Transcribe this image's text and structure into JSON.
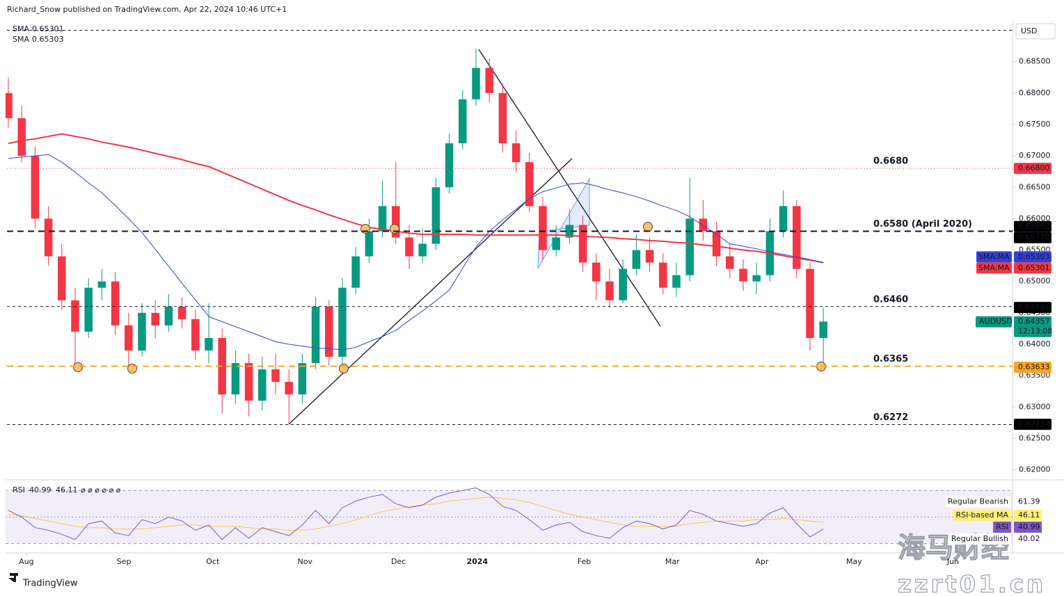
{
  "header": "Richard_Snow published on TradingView.com, Apr 22, 2024 10:46 UTC+1",
  "footer": "TradingView",
  "watermark": {
    "title": "海马财经",
    "url": "zzrt01.cn"
  },
  "chart_data": {
    "type": "candlestick",
    "symbol": "AUDUSD",
    "currency": "USD",
    "countdown": "12:13:08",
    "up_color": "#089981",
    "down_color": "#f23645",
    "xlim": [
      0,
      75
    ],
    "xticks": [
      {
        "value": 1.35,
        "label": "Aug"
      },
      {
        "value": 8.65,
        "label": "Sep"
      },
      {
        "value": 15.3,
        "label": "Oct"
      },
      {
        "value": 22.2,
        "label": "Nov"
      },
      {
        "value": 29.2,
        "label": "Dec"
      },
      {
        "value": 35.1,
        "label": "2024"
      },
      {
        "value": 43.1,
        "label": "Feb"
      },
      {
        "value": 49.7,
        "label": "Mar"
      },
      {
        "value": 56.4,
        "label": "Apr"
      },
      {
        "value": 63.3,
        "label": "May"
      },
      {
        "value": 70.7,
        "label": "Jun"
      }
    ],
    "ylim": [
      0.6184,
      0.6915
    ],
    "yticks": [
      {
        "value": 0.685,
        "label": "0.68500"
      },
      {
        "value": 0.68,
        "label": "0.68000"
      },
      {
        "value": 0.675,
        "label": "0.67500"
      },
      {
        "value": 0.67,
        "label": "0.67000"
      },
      {
        "value": 0.665,
        "label": "0.66500"
      },
      {
        "value": 0.66,
        "label": "0.66000"
      },
      {
        "value": 0.655,
        "label": "0.65500"
      },
      {
        "value": 0.65,
        "label": "0.65000"
      },
      {
        "value": 0.645,
        "label": "0.64500"
      },
      {
        "value": 0.64,
        "label": "0.64000"
      },
      {
        "value": 0.635,
        "label": "0.63500"
      },
      {
        "value": 0.63,
        "label": "0.63000"
      },
      {
        "value": 0.625,
        "label": "0.62500"
      },
      {
        "value": 0.62,
        "label": "0.62000"
      }
    ],
    "open": [
      0.68,
      0.676,
      0.67,
      0.66,
      0.654,
      0.647,
      0.642,
      0.649,
      0.65,
      0.643,
      0.639,
      0.645,
      0.643,
      0.646,
      0.644,
      0.639,
      0.641,
      0.632,
      0.637,
      0.631,
      0.636,
      0.634,
      0.632,
      0.637,
      0.646,
      0.638,
      0.649,
      0.654,
      0.658,
      0.662,
      0.657,
      0.654,
      0.656,
      0.665,
      0.672,
      0.679,
      0.684,
      0.68,
      0.672,
      0.669,
      0.662,
      0.655,
      0.657,
      0.659,
      0.653,
      0.65,
      0.647,
      0.652,
      0.655,
      0.653,
      0.649,
      0.651,
      0.66,
      0.658,
      0.654,
      0.652,
      0.65,
      0.651,
      0.658,
      0.662,
      0.652,
      0.641
    ],
    "high": [
      0.6825,
      0.678,
      0.6715,
      0.662,
      0.656,
      0.649,
      0.6505,
      0.652,
      0.6515,
      0.645,
      0.6465,
      0.647,
      0.648,
      0.6475,
      0.6455,
      0.6465,
      0.6425,
      0.639,
      0.6385,
      0.638,
      0.6385,
      0.636,
      0.6385,
      0.6475,
      0.647,
      0.6505,
      0.6555,
      0.66,
      0.666,
      0.669,
      0.659,
      0.6585,
      0.6665,
      0.6735,
      0.6805,
      0.6871,
      0.6855,
      0.6815,
      0.674,
      0.6705,
      0.6635,
      0.659,
      0.6615,
      0.6605,
      0.6545,
      0.652,
      0.6535,
      0.6575,
      0.657,
      0.6545,
      0.653,
      0.6665,
      0.663,
      0.6595,
      0.656,
      0.6535,
      0.653,
      0.66,
      0.6645,
      0.663,
      0.653,
      0.6458
    ],
    "low": [
      0.6745,
      0.669,
      0.6585,
      0.6525,
      0.6455,
      0.6365,
      0.641,
      0.647,
      0.6415,
      0.6363,
      0.638,
      0.641,
      0.642,
      0.6425,
      0.6375,
      0.637,
      0.629,
      0.6305,
      0.6285,
      0.6295,
      0.632,
      0.6272,
      0.6305,
      0.636,
      0.6365,
      0.636,
      0.648,
      0.653,
      0.657,
      0.656,
      0.652,
      0.653,
      0.655,
      0.664,
      0.671,
      0.678,
      0.6785,
      0.6705,
      0.6675,
      0.661,
      0.6535,
      0.654,
      0.656,
      0.6515,
      0.647,
      0.646,
      0.6465,
      0.651,
      0.6515,
      0.648,
      0.6475,
      0.65,
      0.6565,
      0.6525,
      0.6505,
      0.6485,
      0.648,
      0.65,
      0.657,
      0.6505,
      0.639,
      0.6362
    ],
    "close": [
      0.676,
      0.67,
      0.66,
      0.654,
      0.647,
      0.642,
      0.649,
      0.65,
      0.643,
      0.639,
      0.645,
      0.643,
      0.646,
      0.644,
      0.639,
      0.641,
      0.632,
      0.637,
      0.631,
      0.636,
      0.634,
      0.632,
      0.637,
      0.646,
      0.638,
      0.649,
      0.654,
      0.658,
      0.662,
      0.657,
      0.654,
      0.656,
      0.665,
      0.672,
      0.679,
      0.684,
      0.68,
      0.672,
      0.669,
      0.662,
      0.655,
      0.657,
      0.659,
      0.653,
      0.65,
      0.647,
      0.652,
      0.655,
      0.653,
      0.649,
      0.651,
      0.66,
      0.658,
      0.654,
      0.652,
      0.65,
      0.651,
      0.658,
      0.662,
      0.652,
      0.641,
      0.6436
    ],
    "series": [
      {
        "name": "SMA",
        "color": "#f23645",
        "legend_label": "0.65301",
        "tag_label": "SMA:MA",
        "values": [
          0.672,
          0.6724,
          0.6727,
          0.6731,
          0.6735,
          0.6731,
          0.6727,
          0.6722,
          0.6718,
          0.6714,
          0.6709,
          0.6704,
          0.6699,
          0.6694,
          0.6688,
          0.6683,
          0.6674,
          0.6665,
          0.6656,
          0.6647,
          0.6638,
          0.6629,
          0.6621,
          0.6614,
          0.6606,
          0.6599,
          0.6592,
          0.6586,
          0.6583,
          0.658,
          0.6577,
          0.6575,
          0.6575,
          0.6575,
          0.6575,
          0.6574,
          0.6574,
          0.6574,
          0.6574,
          0.6574,
          0.6574,
          0.6574,
          0.6573,
          0.6572,
          0.6571,
          0.657,
          0.6568,
          0.6567,
          0.6565,
          0.6564,
          0.6562,
          0.6561,
          0.6558,
          0.6556,
          0.6553,
          0.655,
          0.6548,
          0.6545,
          0.6541,
          0.6537,
          0.6534,
          0.653
        ]
      },
      {
        "name": "SMA",
        "color": "#3341d8",
        "legend_label": "0.65303",
        "tag_label": "SMA:MA",
        "values": [
          0.6696,
          0.6698,
          0.67,
          0.6702,
          0.669,
          0.6674,
          0.6657,
          0.6641,
          0.6621,
          0.66,
          0.6578,
          0.6551,
          0.6524,
          0.6497,
          0.6471,
          0.6444,
          0.6436,
          0.6428,
          0.642,
          0.6412,
          0.6404,
          0.64,
          0.6397,
          0.6394,
          0.6393,
          0.6391,
          0.6395,
          0.6404,
          0.6412,
          0.6422,
          0.6438,
          0.6453,
          0.6469,
          0.6486,
          0.6521,
          0.6555,
          0.658,
          0.6598,
          0.6615,
          0.6632,
          0.6643,
          0.6649,
          0.6655,
          0.6657,
          0.6652,
          0.6646,
          0.6641,
          0.6635,
          0.6628,
          0.662,
          0.6613,
          0.6603,
          0.6589,
          0.6575,
          0.656,
          0.6556,
          0.6552,
          0.6547,
          0.6543,
          0.6539,
          0.6535,
          0.653
        ]
      }
    ],
    "levels": [
      {
        "value": 0.69,
        "color": "#131722",
        "style": "dashed"
      },
      {
        "value": 0.668,
        "label": "0.6680",
        "color": "#f23645",
        "style": "dotted"
      },
      {
        "value": 0.658,
        "label": "0.6580 (April 2020)",
        "color": "#131722",
        "style": "bold-dashed"
      },
      {
        "value": 0.646,
        "label": "0.6460",
        "color": "#131722",
        "style": "dashed"
      },
      {
        "value": 0.6365,
        "label": "0.6365",
        "color": "#f5a623",
        "style": "bold-dashed"
      },
      {
        "value": 0.6272,
        "label": "0.6272",
        "color": "#131722",
        "style": "dashed"
      }
    ],
    "price_tags": [
      {
        "value": 0.668,
        "label": "0.66800",
        "color": "#f23645"
      },
      {
        "value": 0.65802,
        "label": "0.65802",
        "color": "#000000"
      },
      {
        "value": 0.6577,
        "label": "0.65770",
        "color": "#000000"
      },
      {
        "value": 0.65303,
        "label": "0.65303",
        "color": "#3341d8",
        "series": 1
      },
      {
        "value": 0.65301,
        "label": "0.65301",
        "color": "#f23645",
        "series": 0
      },
      {
        "value": 0.64586,
        "label": "0.64586",
        "color": "#000000"
      },
      {
        "value": 0.64357,
        "label": "0.64357",
        "color": "#089981",
        "last": true
      },
      {
        "value": 0.63633,
        "label": "0.63633",
        "color": "#f5a623"
      },
      {
        "value": 0.62724,
        "label": "0.62724",
        "color": "#000000"
      }
    ],
    "rsi": {
      "title": "RSI",
      "legend_labels": [
        "40.99",
        "46.11"
      ],
      "legend_extra": "⌀ ⌀ ⌀ ⌀ ⌀ ⌀",
      "color": "#7e57c2",
      "ma_color": "#f2c94c",
      "ylim": [
        23,
        78
      ],
      "levels": [
        70,
        50,
        30
      ],
      "values": [
        55,
        50,
        42,
        40,
        37,
        33,
        45,
        47,
        38,
        36,
        48,
        45,
        50,
        47,
        40,
        44,
        33,
        42,
        34,
        42,
        39,
        36,
        44,
        55,
        45,
        57,
        62,
        65,
        67,
        60,
        57,
        59,
        65,
        68,
        70,
        72,
        67,
        58,
        55,
        48,
        40,
        44,
        46,
        39,
        36,
        34,
        42,
        47,
        45,
        41,
        44,
        55,
        52,
        47,
        45,
        43,
        45,
        53,
        57,
        45,
        35,
        40.99
      ],
      "ma_values": [
        52,
        51,
        49,
        47,
        45,
        43,
        42,
        42,
        41,
        41,
        41,
        42,
        43,
        44,
        44,
        43,
        43,
        43,
        42,
        41,
        41,
        40,
        40,
        41,
        43,
        45,
        48,
        51,
        54,
        56,
        58,
        59,
        60,
        62,
        63,
        64,
        65,
        64,
        63,
        61,
        58,
        55,
        52,
        50,
        48,
        46,
        44,
        43,
        43,
        43,
        43,
        45,
        46,
        47,
        47,
        47,
        48,
        48,
        49,
        48,
        47,
        46.11
      ],
      "tags": [
        {
          "name": "Regular Bearish",
          "value": 61.39,
          "color": "#ffffff"
        },
        {
          "name": "RSI-based MA",
          "value": 46.11,
          "color": "#fff176"
        },
        {
          "name": "RSI",
          "value": 40.99,
          "color": "#7e57c2"
        },
        {
          "name": "Regular Bullish",
          "value": 40.02,
          "color": "#ffffff"
        }
      ]
    }
  }
}
